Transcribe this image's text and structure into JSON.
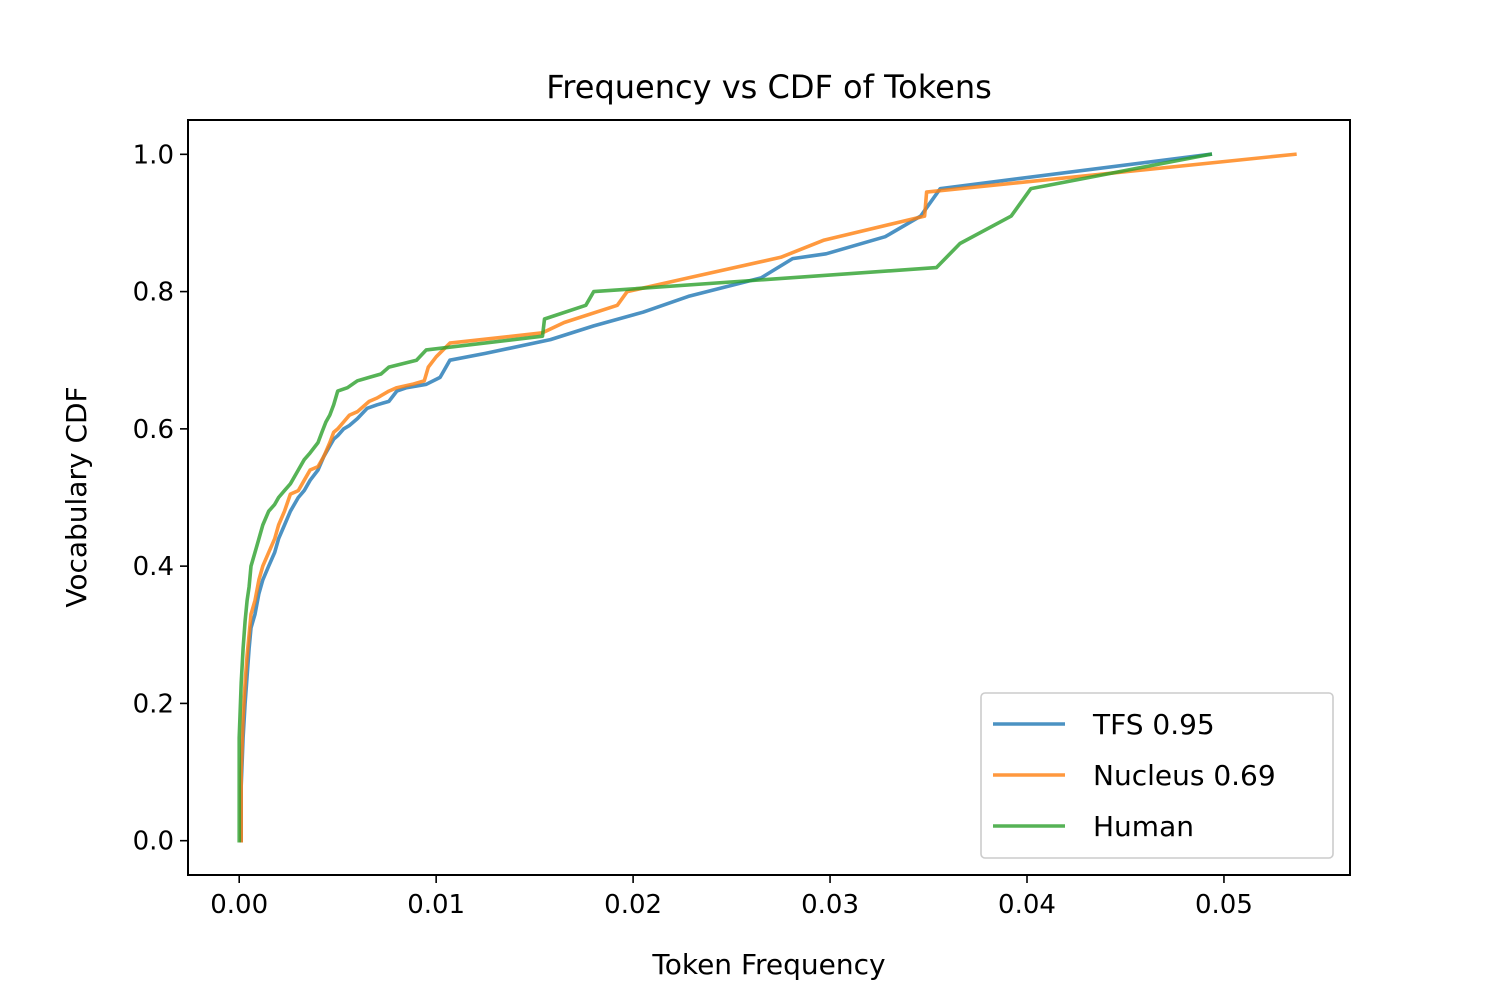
{
  "chart_data": {
    "type": "line",
    "title": "Frequency vs CDF of Tokens",
    "xlabel": "Token Frequency",
    "ylabel": "Vocabulary CDF",
    "xlim": [
      -0.0026,
      0.0564
    ],
    "ylim": [
      -0.05,
      1.05
    ],
    "xticks": [
      0.0,
      0.01,
      0.02,
      0.03,
      0.04,
      0.05
    ],
    "xtick_labels": [
      "0.00",
      "0.01",
      "0.02",
      "0.03",
      "0.04",
      "0.05"
    ],
    "yticks": [
      0.0,
      0.2,
      0.4,
      0.6,
      0.8,
      1.0
    ],
    "ytick_labels": [
      "0.0",
      "0.2",
      "0.4",
      "0.6",
      "0.8",
      "1.0"
    ],
    "grid": false,
    "legend": {
      "position": "lower-right"
    },
    "series": [
      {
        "name": "TFS 0.95",
        "color": "#1f77b4",
        "x": [
          0.0001,
          0.0001,
          0.0002,
          0.0003,
          0.0004,
          0.0005,
          0.0006,
          0.0008,
          0.001,
          0.0012,
          0.0015,
          0.0018,
          0.002,
          0.0023,
          0.0026,
          0.003,
          0.0033,
          0.0036,
          0.004,
          0.0043,
          0.0046,
          0.0048,
          0.005,
          0.0053,
          0.0056,
          0.006,
          0.0065,
          0.007,
          0.0076,
          0.008,
          0.0085,
          0.0095,
          0.0102,
          0.0107,
          0.0125,
          0.0158,
          0.018,
          0.0205,
          0.0228,
          0.0265,
          0.0281,
          0.0298,
          0.0328,
          0.0346,
          0.0356,
          0.0493
        ],
        "y": [
          0.0,
          0.08,
          0.15,
          0.2,
          0.24,
          0.28,
          0.31,
          0.33,
          0.36,
          0.38,
          0.4,
          0.42,
          0.44,
          0.46,
          0.48,
          0.5,
          0.51,
          0.525,
          0.54,
          0.56,
          0.575,
          0.585,
          0.59,
          0.6,
          0.605,
          0.615,
          0.63,
          0.635,
          0.64,
          0.655,
          0.66,
          0.665,
          0.675,
          0.7,
          0.71,
          0.73,
          0.75,
          0.77,
          0.793,
          0.82,
          0.848,
          0.855,
          0.88,
          0.91,
          0.95,
          1.0
        ]
      },
      {
        "name": "Nucleus 0.69",
        "color": "#ff7f0e",
        "x": [
          0.0001,
          0.0001,
          0.0002,
          0.0003,
          0.0004,
          0.0005,
          0.0006,
          0.0008,
          0.001,
          0.0012,
          0.0015,
          0.0018,
          0.002,
          0.0023,
          0.0026,
          0.003,
          0.0033,
          0.0036,
          0.004,
          0.0043,
          0.0046,
          0.0048,
          0.005,
          0.0053,
          0.0056,
          0.006,
          0.0066,
          0.007,
          0.0076,
          0.008,
          0.0088,
          0.0094,
          0.0096,
          0.01,
          0.0107,
          0.0154,
          0.0165,
          0.0192,
          0.0197,
          0.0228,
          0.0275,
          0.0297,
          0.0348,
          0.0349,
          0.0536
        ],
        "y": [
          0.0,
          0.1,
          0.18,
          0.23,
          0.27,
          0.3,
          0.33,
          0.35,
          0.38,
          0.4,
          0.42,
          0.44,
          0.46,
          0.48,
          0.505,
          0.51,
          0.525,
          0.54,
          0.545,
          0.56,
          0.58,
          0.595,
          0.6,
          0.61,
          0.62,
          0.625,
          0.64,
          0.645,
          0.655,
          0.66,
          0.665,
          0.67,
          0.69,
          0.705,
          0.725,
          0.74,
          0.755,
          0.78,
          0.8,
          0.82,
          0.85,
          0.875,
          0.91,
          0.945,
          1.0
        ]
      },
      {
        "name": "Human",
        "color": "#2ca02c",
        "x": [
          0.0,
          0.0,
          0.0001,
          0.0002,
          0.0003,
          0.0004,
          0.0005,
          0.0006,
          0.0008,
          0.001,
          0.0012,
          0.0015,
          0.0018,
          0.002,
          0.0023,
          0.0026,
          0.003,
          0.0033,
          0.0036,
          0.004,
          0.0042,
          0.0044,
          0.0046,
          0.0048,
          0.005,
          0.0055,
          0.006,
          0.0066,
          0.0072,
          0.0076,
          0.009,
          0.0095,
          0.0154,
          0.0155,
          0.0176,
          0.018,
          0.0354,
          0.0366,
          0.0392,
          0.0402,
          0.0493
        ],
        "y": [
          0.0,
          0.15,
          0.23,
          0.28,
          0.32,
          0.35,
          0.37,
          0.4,
          0.42,
          0.44,
          0.46,
          0.48,
          0.49,
          0.5,
          0.51,
          0.52,
          0.54,
          0.555,
          0.565,
          0.58,
          0.595,
          0.61,
          0.62,
          0.635,
          0.655,
          0.66,
          0.67,
          0.675,
          0.68,
          0.69,
          0.7,
          0.715,
          0.735,
          0.76,
          0.78,
          0.8,
          0.835,
          0.87,
          0.91,
          0.95,
          1.0
        ]
      }
    ]
  }
}
